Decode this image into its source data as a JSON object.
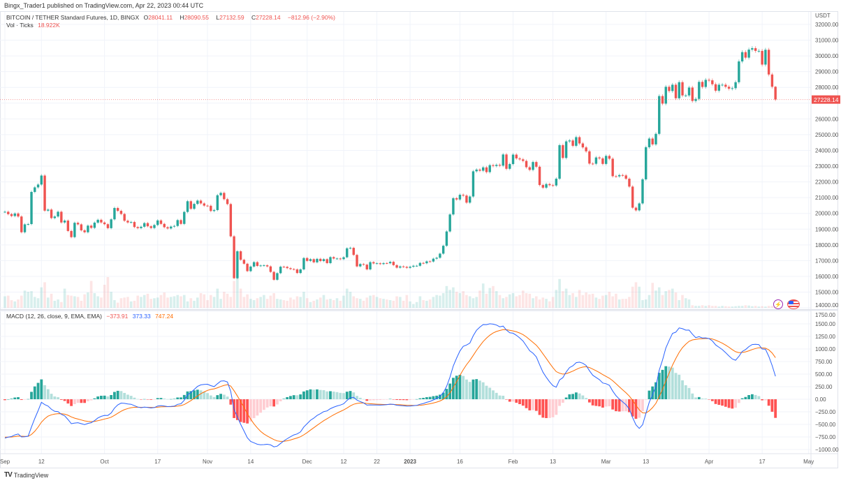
{
  "published": "Bingx_Trader1 published on TradingView.com, Apr 22, 2023 00:44 UTC",
  "legend": {
    "symbol": "BITCOIN / TETHER Standard Futures, 1D, BINGX",
    "open_label": "O",
    "open": "28041.11",
    "high_label": "H",
    "high": "28090.55",
    "low_label": "L",
    "low": "27132.59",
    "close_label": "C",
    "close": "27228.14",
    "change": "−812.96 (−2.90%)",
    "vol_label": "Vol · Ticks",
    "vol_value": "18.922K"
  },
  "macd_legend": {
    "title": "MACD (12, 26, close, 9, EMA, EMA)",
    "histogram": "−373.91",
    "macd": "373.33",
    "signal": "747.24"
  },
  "footer": {
    "brand": "TradingView"
  },
  "icons": [
    "lightning-icon",
    "us-flag-icon"
  ],
  "colors": {
    "up": "#26a69a",
    "down": "#ef5350",
    "macd": "#2962ff",
    "signal": "#ff6d00",
    "hist_up_strong": "#26a69a",
    "hist_up_weak": "#b2dfdb",
    "hist_down_strong": "#ff5252",
    "hist_down_weak": "#ffcdd2"
  },
  "chart_data": [
    {
      "type": "candlestick",
      "interval": "1D",
      "currency": "USDT",
      "ylim": [
        14000,
        32000
      ],
      "yticks": [
        "32000.00",
        "31000.00",
        "30000.00",
        "29000.00",
        "28000.00",
        "27000.00",
        "26000.00",
        "25000.00",
        "24000.00",
        "23000.00",
        "22000.00",
        "21000.00",
        "20000.00",
        "19000.00",
        "18000.00",
        "17000.00",
        "16000.00",
        "15000.00",
        "14000.00"
      ],
      "last_price_label": "27228.14",
      "last_candle": {
        "open": 28041.11,
        "high": 28090.55,
        "low": 27132.59,
        "close": 27228.14
      },
      "grid": true,
      "closes_by_month": {
        "2022-09": [
          20100,
          19950,
          19830,
          19990,
          19800,
          18800,
          19300,
          19320,
          21360,
          21650,
          21830,
          22400,
          20170,
          20240,
          19700,
          19800,
          20100,
          19420,
          19540,
          18880,
          18490,
          19400,
          19300,
          18920,
          18800,
          19220,
          19080,
          19410,
          19590,
          19420
        ],
        "2022-10": [
          19310,
          19060,
          19620,
          20340,
          20160,
          19960,
          19530,
          19420,
          19450,
          19130,
          19060,
          19150,
          19380,
          19180,
          19070,
          19260,
          19550,
          19330,
          19120,
          19040,
          19160,
          19200,
          19570,
          19330,
          20090,
          20770,
          20290,
          20600,
          20810,
          20630,
          20490
        ],
        "2022-11": [
          20480,
          20150,
          20210,
          21150,
          21300,
          20900,
          20590,
          18540,
          15880,
          17590,
          17050,
          16800,
          16330,
          16620,
          16900,
          16660,
          16690,
          16700,
          16630,
          16280,
          15780,
          16200,
          16610,
          16600,
          16520,
          16460,
          16440,
          16210,
          16440,
          17160
        ],
        "2022-12": [
          16980,
          17090,
          16890,
          17110,
          16970,
          17090,
          16840,
          17220,
          17130,
          17130,
          17090,
          17210,
          17780,
          17810,
          17360,
          16630,
          16780,
          16740,
          16440,
          16900,
          16820,
          16830,
          16780,
          16840,
          16830,
          16920,
          16710,
          16550,
          16630,
          16600,
          16540
        ],
        "2023-01": [
          16610,
          16670,
          16670,
          16850,
          16830,
          16950,
          16940,
          17120,
          17180,
          17440,
          17940,
          18850,
          19930,
          20960,
          20880,
          21180,
          21130,
          20680,
          21070,
          22670,
          22780,
          22710,
          22920,
          22620,
          23060,
          23010,
          23080,
          23030,
          23740,
          22830,
          23130
        ],
        "2023-02": [
          23730,
          23490,
          23430,
          23330,
          22930,
          22760,
          23260,
          22960,
          21800,
          21630,
          21860,
          21790,
          21770,
          22200,
          24330,
          23520,
          24570,
          24630,
          24290,
          24840,
          24440,
          24190,
          23940,
          23160,
          23150,
          23550,
          23490,
          23140
        ],
        "2023-03": [
          23650,
          23470,
          22360,
          22350,
          22430,
          22410,
          22200,
          21700,
          20360,
          20190,
          20630,
          22160,
          24200,
          24750,
          24380,
          25050,
          27450,
          26970,
          28040,
          27770,
          28170,
          27310,
          28330,
          27490,
          27490,
          27990,
          27140,
          27270,
          28350,
          28030,
          28480
        ],
        "2023-04": [
          28450,
          28200,
          27790,
          28170,
          28170,
          28040,
          27920,
          27950,
          28330,
          29650,
          30240,
          29890,
          30400,
          30490,
          30320,
          30320,
          29450,
          30390,
          28820,
          28041.11,
          27228.14
        ]
      },
      "volume_k_by_month": {
        "2022-09": [
          180,
          190,
          120,
          100,
          130,
          190,
          270,
          250,
          260,
          170,
          150,
          320,
          400,
          160,
          220,
          110,
          130,
          90,
          300,
          200,
          190,
          180,
          170,
          110,
          210,
          240,
          420,
          230,
          180,
          160
        ],
        "2022-10": [
          360,
          480,
          250,
          120,
          80,
          150,
          160,
          170,
          100,
          110,
          190,
          170,
          200,
          220,
          140,
          150,
          160,
          200,
          240,
          160,
          170,
          180,
          200,
          180,
          200,
          100,
          150,
          110,
          160,
          230,
          210
        ],
        "2022-11": [
          120,
          200,
          170,
          300,
          140,
          250,
          220,
          170,
          420,
          600,
          300,
          170,
          210,
          140,
          120,
          150,
          170,
          200,
          140,
          190,
          230,
          140,
          130,
          120,
          110,
          160,
          130,
          180,
          170,
          250
        ],
        "2022-12": [
          150,
          90,
          110,
          130,
          160,
          200,
          130,
          140,
          120,
          150,
          110,
          190,
          300,
          250,
          180,
          150,
          140,
          110,
          160,
          190,
          200,
          170,
          150,
          140,
          130,
          120,
          110,
          180,
          170,
          110,
          200
        ],
        "2023-01": [
          100,
          60,
          90,
          180,
          120,
          110,
          130,
          170,
          200,
          190,
          230,
          340,
          280,
          320,
          250,
          230,
          260,
          200,
          180,
          150,
          170,
          270,
          380,
          220,
          310,
          340,
          260,
          200,
          150,
          170,
          210
        ],
        "2023-02": [
          230,
          180,
          200,
          270,
          230,
          220,
          150,
          180,
          130,
          160,
          140,
          100,
          170,
          280,
          450,
          260,
          300,
          200,
          230,
          170,
          280,
          200,
          240,
          210,
          220,
          160,
          140,
          190
        ],
        "2023-03": [
          200,
          250,
          180,
          220,
          130,
          140,
          140,
          170,
          330,
          400,
          330,
          120,
          130,
          200,
          390,
          270,
          320,
          200,
          260,
          280,
          300,
          240,
          120,
          200,
          150,
          130,
          40,
          30,
          30,
          40,
          30
        ],
        "2023-04": [
          40,
          30,
          30,
          20,
          30,
          25,
          20,
          20,
          25,
          30,
          30,
          40,
          35,
          25,
          30,
          20,
          25,
          20,
          30,
          30,
          18.922
        ]
      }
    },
    {
      "type": "macd",
      "params": "12, 26, close, 9, EMA, EMA",
      "ylim": [
        -1000,
        1750
      ],
      "yticks": [
        "1750.00",
        "1500.00",
        "1250.00",
        "1000.00",
        "750.00",
        "500.00",
        "250.00",
        "0.00",
        "−250.00",
        "−500.00",
        "−750.00",
        "−1000.00"
      ],
      "ytick_values": [
        1750,
        1500,
        1250,
        1000,
        750,
        500,
        250,
        0,
        -250,
        -500,
        -750,
        -1000
      ],
      "last": {
        "histogram": -373.91,
        "macd": 373.33,
        "signal": 747.24
      }
    }
  ],
  "xaxis": [
    {
      "label": "Sep",
      "date": "2022-09-01"
    },
    {
      "label": "12",
      "date": "2022-09-12"
    },
    {
      "label": "Oct",
      "date": "2022-10-01"
    },
    {
      "label": "17",
      "date": "2022-10-17"
    },
    {
      "label": "Nov",
      "date": "2022-11-01"
    },
    {
      "label": "14",
      "date": "2022-11-14"
    },
    {
      "label": "Dec",
      "date": "2022-12-01"
    },
    {
      "label": "12",
      "date": "2022-12-12"
    },
    {
      "label": "22",
      "date": "2022-12-22"
    },
    {
      "label": "2023",
      "date": "2023-01-01",
      "bold": true
    },
    {
      "label": "16",
      "date": "2023-01-16"
    },
    {
      "label": "Feb",
      "date": "2023-02-01"
    },
    {
      "label": "13",
      "date": "2023-02-13"
    },
    {
      "label": "Mar",
      "date": "2023-03-01"
    },
    {
      "label": "13",
      "date": "2023-03-13"
    },
    {
      "label": "Apr",
      "date": "2023-04-01"
    },
    {
      "label": "17",
      "date": "2023-04-17"
    },
    {
      "label": "May",
      "date": "2023-05-01"
    }
  ]
}
